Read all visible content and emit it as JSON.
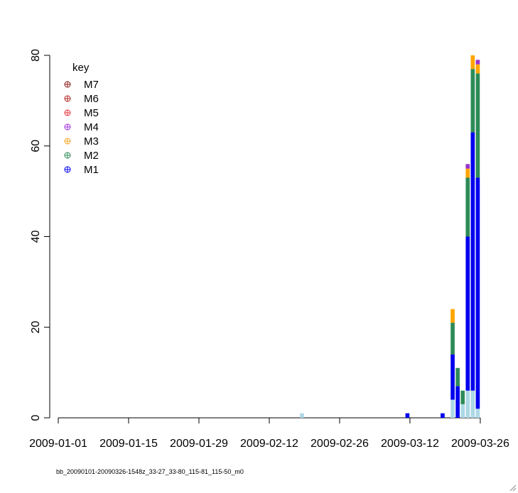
{
  "footnote": "bb_20090101-20090326-1548z_33-27_33-80_115-81_115-50_m0",
  "chart_data": {
    "type": "bar",
    "stacked": true,
    "title": "",
    "xlabel": "",
    "ylabel": "",
    "ylim": [
      0,
      80
    ],
    "yticks": [
      0,
      20,
      40,
      60,
      80
    ],
    "xlim": [
      "2009-01-01",
      "2009-03-27"
    ],
    "xticks": [
      "2009-01-01",
      "2009-01-15",
      "2009-01-29",
      "2009-02-12",
      "2009-02-26",
      "2009-03-12",
      "2009-03-26"
    ],
    "grid": false,
    "legend": {
      "title": "key",
      "placement": "top-left",
      "entries": [
        {
          "label": "M7",
          "color": "#8b1a1a"
        },
        {
          "label": "M6",
          "color": "#b22222"
        },
        {
          "label": "M5",
          "color": "#e8343a"
        },
        {
          "label": "M4",
          "color": "#a030e0"
        },
        {
          "label": "M3",
          "color": "#f5a623"
        },
        {
          "label": "M2",
          "color": "#2e8b57"
        },
        {
          "label": "M1",
          "color": "#0000ee"
        }
      ]
    },
    "segment_colors": {
      "M0": "#add8e6",
      "M1": "#0000ee",
      "M2": "#2e8b57",
      "M3": "#ffa500",
      "M4": "#9932cc"
    },
    "bars": [
      {
        "date": "2009-02-18",
        "M0": 1,
        "M1": 0,
        "M2": 0,
        "M3": 0,
        "M4": 0
      },
      {
        "date": "2009-03-11",
        "M0": 0,
        "M1": 1,
        "M2": 0,
        "M3": 0,
        "M4": 0
      },
      {
        "date": "2009-03-18",
        "M0": 0,
        "M1": 1,
        "M2": 0,
        "M3": 0,
        "M4": 0
      },
      {
        "date": "2009-03-20",
        "M0": 4,
        "M1": 10,
        "M2": 7,
        "M3": 3,
        "M4": 0
      },
      {
        "date": "2009-03-21",
        "M0": 0,
        "M1": 7,
        "M2": 4,
        "M3": 0,
        "M4": 0
      },
      {
        "date": "2009-03-22",
        "M0": 3,
        "M1": 0,
        "M2": 3,
        "M3": 0,
        "M4": 0
      },
      {
        "date": "2009-03-23",
        "M0": 6,
        "M1": 34,
        "M2": 13,
        "M3": 2,
        "M4": 1
      },
      {
        "date": "2009-03-24",
        "M0": 6,
        "M1": 57,
        "M2": 14,
        "M3": 3,
        "M4": 0
      },
      {
        "date": "2009-03-25",
        "M0": 2,
        "M1": 51,
        "M2": 23,
        "M3": 2,
        "M4": 1
      }
    ]
  }
}
